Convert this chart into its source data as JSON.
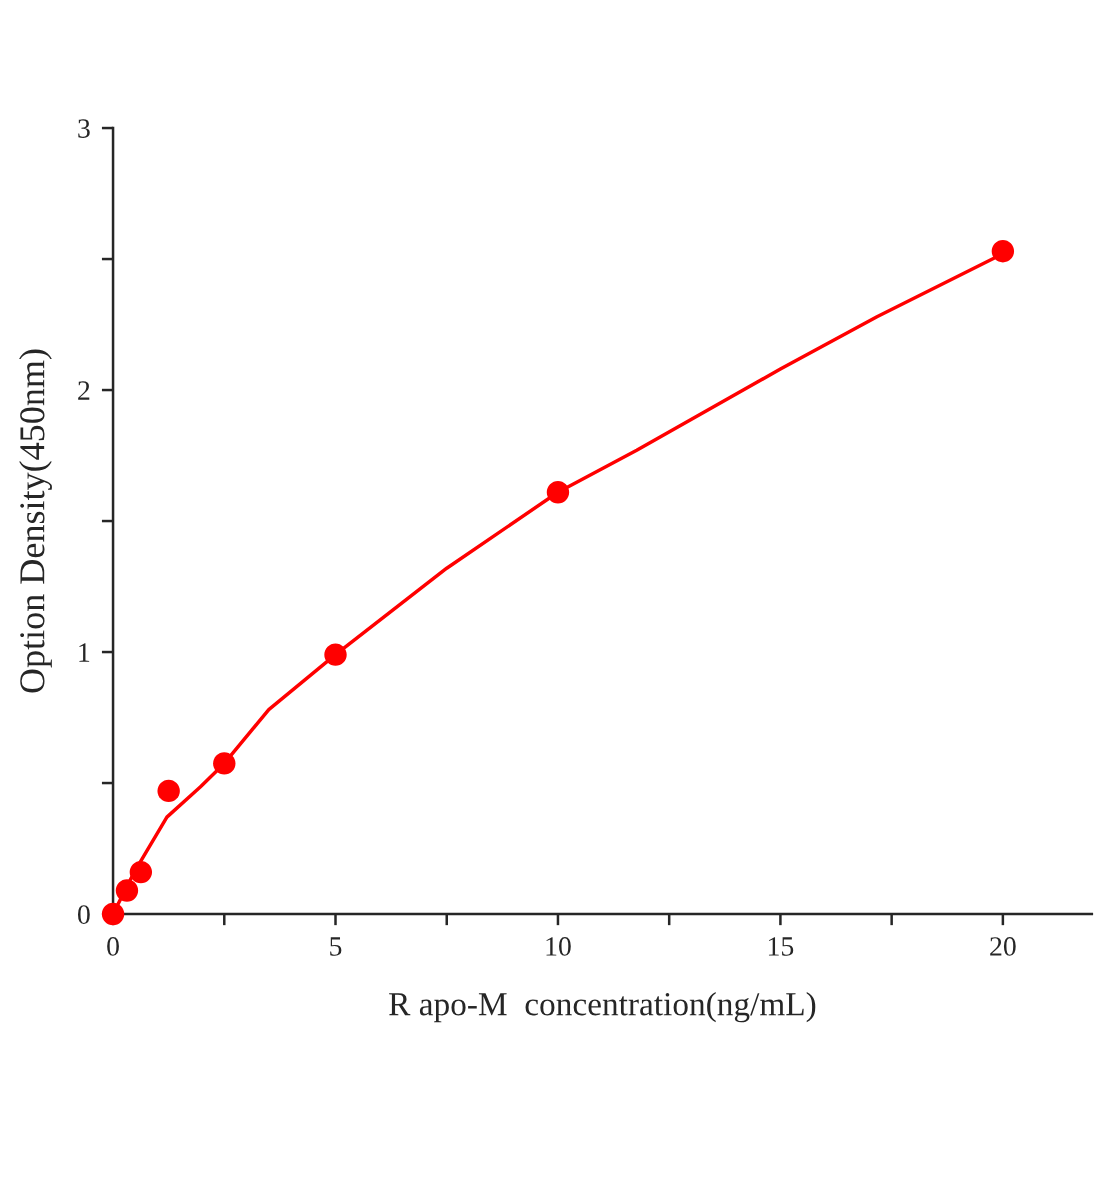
{
  "chart_data": {
    "type": "scatter",
    "xlabel": "R apo-M  concentration(ng/mL)",
    "ylabel": "Option Density(450nm)",
    "series": [
      {
        "color": "#ff0000",
        "marker": "circle",
        "x": [
          0,
          0.3125,
          0.625,
          1.25,
          2.5,
          5,
          10,
          20
        ],
        "values": [
          0,
          0.09,
          0.16,
          0.47,
          0.575,
          0.99,
          1.61,
          2.53
        ]
      },
      {
        "type": "line",
        "color": "#ff0000",
        "marker": "none",
        "line_style": "solid",
        "x": [
          0,
          0.46,
          1.21,
          1.96,
          2.5,
          3.5,
          5,
          7.5,
          10,
          11.77,
          15,
          17.17,
          20
        ],
        "values": [
          0,
          0.155,
          0.37,
          0.485,
          0.575,
          0.78,
          0.99,
          1.32,
          1.61,
          1.77,
          2.08,
          2.28,
          2.52
        ]
      }
    ],
    "xlim": [
      0,
      22
    ],
    "ylim": [
      0,
      3
    ],
    "xticks": [
      0,
      {
        "value": 2.5,
        "label": null
      },
      5,
      {
        "value": 7.5,
        "label": null
      },
      10,
      {
        "value": 12.5,
        "label": null
      },
      15,
      {
        "value": 17.5,
        "label": null
      },
      20
    ],
    "yticks": [
      0,
      {
        "value": 0.5,
        "label": null
      },
      1,
      {
        "value": 1.5,
        "label": null
      },
      2,
      {
        "value": 2.5,
        "label": null
      },
      3
    ],
    "grid": false,
    "legend": false
  }
}
